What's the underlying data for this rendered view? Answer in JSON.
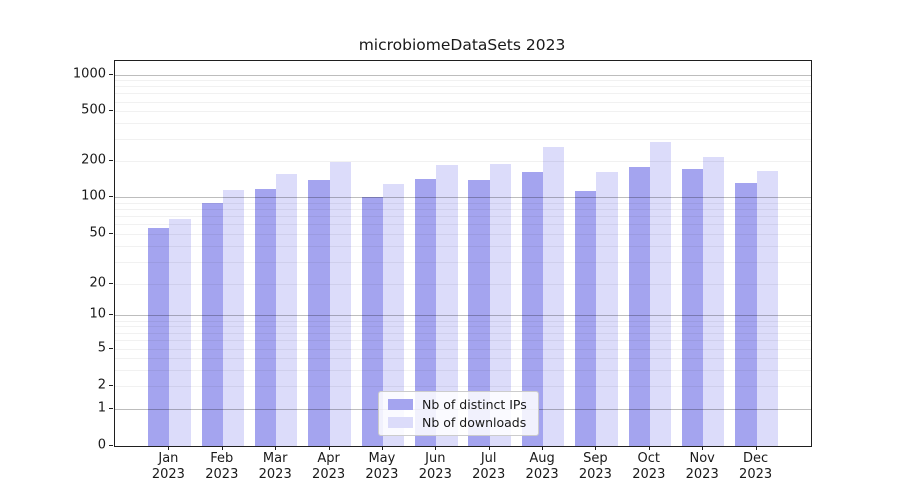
{
  "title": "microbiomeDataSets 2023",
  "chart_data": {
    "type": "bar",
    "title": "microbiomeDataSets 2023",
    "categories": [
      "Jan 2023",
      "Feb 2023",
      "Mar 2023",
      "Apr 2023",
      "May 2023",
      "Jun 2023",
      "Jul 2023",
      "Aug 2023",
      "Sep 2023",
      "Oct 2023",
      "Nov 2023",
      "Dec 2023"
    ],
    "series": [
      {
        "name": "Nb of distinct IPs",
        "color": "#a4a4ef",
        "values": [
          56,
          90,
          117,
          138,
          101,
          143,
          140,
          162,
          113,
          179,
          170,
          131
        ]
      },
      {
        "name": "Nb of downloads",
        "color": "#dcdcfa",
        "values": [
          67,
          116,
          157,
          197,
          130,
          186,
          190,
          260,
          162,
          283,
          214,
          166
        ]
      }
    ],
    "yscale": "symlog",
    "yticks": [
      0,
      1,
      2,
      5,
      10,
      20,
      50,
      100,
      200,
      500,
      1000
    ],
    "ylim": [
      0,
      1300
    ],
    "grid": "horizontal major and minor",
    "legend_position": "lower center",
    "xlabel": "",
    "ylabel": ""
  }
}
